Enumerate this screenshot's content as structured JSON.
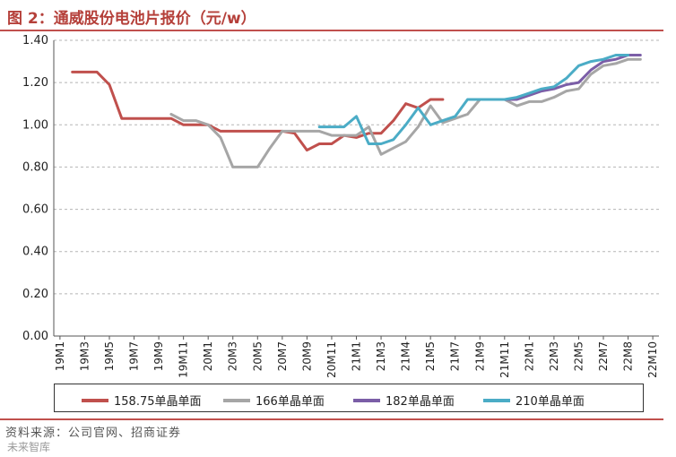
{
  "header": {
    "title": "图 2：通威股份电池片报价（元/w）"
  },
  "footer": {
    "source": "资料来源：公司官网、招商证券",
    "watermark": "未来智库"
  },
  "chart_data": {
    "type": "line",
    "title": "通威股份电池片报价（元/w）",
    "xlabel": "",
    "ylabel": "",
    "ylim": [
      0,
      1.4
    ],
    "yticks": [
      "0.00",
      "0.20",
      "0.40",
      "0.60",
      "0.80",
      "1.00",
      "1.20",
      "1.40"
    ],
    "grid": true,
    "legend_position": "bottom",
    "x_tick_labels": [
      "19M1",
      "19M3",
      "19M5",
      "19M7",
      "19M9",
      "19M11",
      "20M1",
      "20M3",
      "20M5",
      "20M7",
      "20M9",
      "20M11",
      "21M1",
      "21M3",
      "21M4",
      "21M5",
      "21M7",
      "21M9",
      "21M11",
      "22M1",
      "22M3",
      "22M5",
      "22M7",
      "22M8",
      "22M10"
    ],
    "series": [
      {
        "name": "158.75单晶单面",
        "color": "#C0504D",
        "points": [
          [
            2,
            1.25
          ],
          [
            3,
            1.25
          ],
          [
            4,
            1.25
          ],
          [
            5,
            1.19
          ],
          [
            6,
            1.03
          ],
          [
            7,
            1.03
          ],
          [
            8,
            1.03
          ],
          [
            9,
            1.03
          ],
          [
            10,
            1.03
          ],
          [
            11,
            1.0
          ],
          [
            12,
            1.0
          ],
          [
            13,
            1.0
          ],
          [
            14,
            0.97
          ],
          [
            15,
            0.97
          ],
          [
            16,
            0.97
          ],
          [
            17,
            0.97
          ],
          [
            18,
            0.97
          ],
          [
            19,
            0.97
          ],
          [
            20,
            0.96
          ],
          [
            21,
            0.88
          ],
          [
            22,
            0.91
          ],
          [
            23,
            0.91
          ],
          [
            24,
            0.95
          ],
          [
            25,
            0.94
          ],
          [
            26,
            0.96
          ],
          [
            27,
            0.96
          ],
          [
            28,
            1.02
          ],
          [
            29,
            1.1
          ],
          [
            30,
            1.08
          ],
          [
            31,
            1.12
          ],
          [
            32,
            1.12
          ]
        ]
      },
      {
        "name": "166单晶单面",
        "color": "#A6A6A6",
        "points": [
          [
            10,
            1.05
          ],
          [
            11,
            1.02
          ],
          [
            12,
            1.02
          ],
          [
            13,
            1.0
          ],
          [
            14,
            0.94
          ],
          [
            15,
            0.8
          ],
          [
            16,
            0.8
          ],
          [
            17,
            0.8
          ],
          [
            18,
            0.89
          ],
          [
            19,
            0.97
          ],
          [
            20,
            0.97
          ],
          [
            21,
            0.97
          ],
          [
            22,
            0.97
          ],
          [
            23,
            0.95
          ],
          [
            24,
            0.95
          ],
          [
            25,
            0.95
          ],
          [
            26,
            0.99
          ],
          [
            27,
            0.86
          ],
          [
            28,
            0.89
          ],
          [
            29,
            0.92
          ],
          [
            30,
            0.99
          ],
          [
            31,
            1.09
          ],
          [
            32,
            1.01
          ],
          [
            33,
            1.03
          ],
          [
            34,
            1.05
          ],
          [
            35,
            1.12
          ],
          [
            36,
            1.12
          ],
          [
            37,
            1.12
          ],
          [
            38,
            1.09
          ],
          [
            39,
            1.11
          ],
          [
            40,
            1.11
          ],
          [
            41,
            1.13
          ],
          [
            42,
            1.16
          ],
          [
            43,
            1.17
          ],
          [
            44,
            1.24
          ],
          [
            45,
            1.28
          ],
          [
            46,
            1.29
          ],
          [
            47,
            1.31
          ],
          [
            48,
            1.31
          ]
        ]
      },
      {
        "name": "182单晶单面",
        "color": "#7B5EA7",
        "points": [
          [
            36,
            1.12
          ],
          [
            37,
            1.12
          ],
          [
            38,
            1.12
          ],
          [
            39,
            1.14
          ],
          [
            40,
            1.16
          ],
          [
            41,
            1.17
          ],
          [
            42,
            1.19
          ],
          [
            43,
            1.2
          ],
          [
            44,
            1.26
          ],
          [
            45,
            1.3
          ],
          [
            46,
            1.31
          ],
          [
            47,
            1.33
          ],
          [
            48,
            1.33
          ]
        ]
      },
      {
        "name": "210单晶单面",
        "color": "#4BACC6",
        "points": [
          [
            22,
            0.99
          ],
          [
            23,
            0.99
          ],
          [
            24,
            0.99
          ],
          [
            25,
            1.04
          ],
          [
            26,
            0.91
          ],
          [
            27,
            0.91
          ],
          [
            28,
            0.93
          ],
          [
            29,
            1.0
          ],
          [
            30,
            1.08
          ],
          [
            31,
            1.0
          ],
          [
            32,
            1.02
          ],
          [
            33,
            1.04
          ],
          [
            34,
            1.12
          ],
          [
            35,
            1.12
          ],
          [
            36,
            1.12
          ],
          [
            37,
            1.12
          ],
          [
            38,
            1.13
          ],
          [
            39,
            1.15
          ],
          [
            40,
            1.17
          ],
          [
            41,
            1.18
          ],
          [
            42,
            1.22
          ],
          [
            43,
            1.28
          ],
          [
            44,
            1.3
          ],
          [
            45,
            1.31
          ],
          [
            46,
            1.33
          ],
          [
            47,
            1.33
          ]
        ]
      }
    ]
  }
}
